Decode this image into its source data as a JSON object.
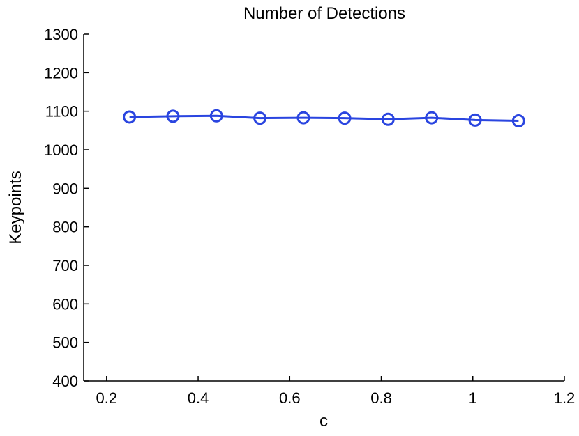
{
  "chart_data": {
    "type": "line",
    "title": "Number of Detections",
    "xlabel": "c",
    "ylabel": "Keypoints",
    "xlim": [
      0.15,
      1.2
    ],
    "ylim": [
      400,
      1300
    ],
    "xticks": [
      0.2,
      0.4,
      0.6,
      0.8,
      1,
      1.2
    ],
    "xtick_labels": [
      "0.2",
      "0.4",
      "0.6",
      "0.8",
      "1",
      "1.2"
    ],
    "yticks": [
      400,
      500,
      600,
      700,
      800,
      900,
      1000,
      1100,
      1200,
      1300
    ],
    "ytick_labels": [
      "400",
      "500",
      "600",
      "700",
      "800",
      "900",
      "1000",
      "1100",
      "1200",
      "1300"
    ],
    "grid": false,
    "series": [
      {
        "color": "#2a45e0",
        "marker": "circle",
        "x": [
          0.25,
          0.345,
          0.44,
          0.535,
          0.63,
          0.72,
          0.815,
          0.91,
          1.005,
          1.1
        ],
        "y": [
          1085,
          1087,
          1088,
          1082,
          1083,
          1082,
          1079,
          1083,
          1077,
          1075
        ]
      }
    ]
  }
}
